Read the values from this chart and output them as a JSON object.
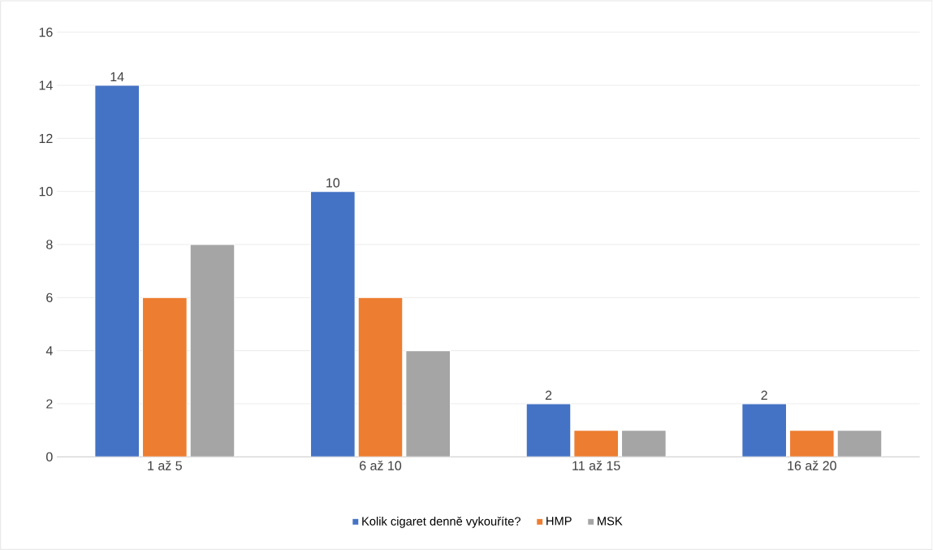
{
  "chart_data": {
    "type": "bar",
    "categories": [
      "1 až 5",
      "6 až 10",
      "11 až 15",
      "16 až 20"
    ],
    "series": [
      {
        "name": "Kolik cigaret denně vykouříte?",
        "color": "#4472c4",
        "values": [
          14,
          10,
          2,
          2
        ],
        "value_labels": [
          "14",
          "10",
          "2",
          "2"
        ]
      },
      {
        "name": "HMP",
        "color": "#ed7d31",
        "values": [
          6,
          6,
          1,
          1
        ]
      },
      {
        "name": "MSK",
        "color": "#a5a5a5",
        "values": [
          8,
          4,
          1,
          1
        ]
      }
    ],
    "ylim": [
      0,
      16
    ],
    "yticks": [
      0,
      2,
      4,
      6,
      8,
      10,
      12,
      14,
      16
    ],
    "grid": "y",
    "legend": "bottom"
  }
}
